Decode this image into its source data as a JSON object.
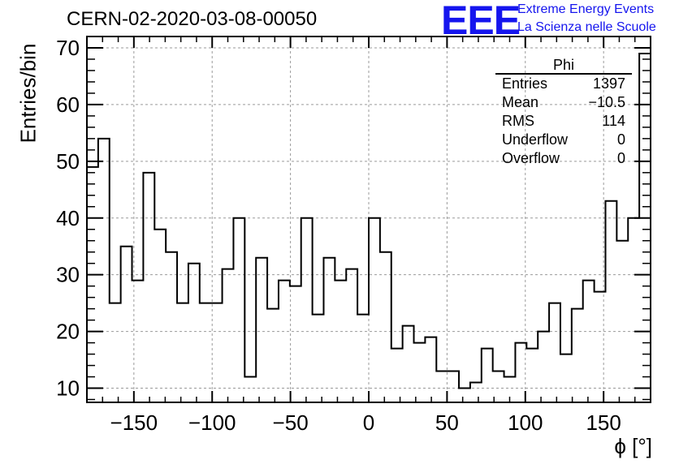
{
  "title": "CERN-02-2020-03-08-00050",
  "logo": {
    "mark": "EEE",
    "line1": "Extreme Energy Events",
    "line2": "La Scienza nelle Scuole"
  },
  "stats": {
    "name": "Phi",
    "rows": [
      {
        "label": "Entries",
        "value": "1397"
      },
      {
        "label": "Mean",
        "value": "−10.5"
      },
      {
        "label": "RMS",
        "value": "114"
      },
      {
        "label": "Underflow",
        "value": "0"
      },
      {
        "label": "Overflow",
        "value": "0"
      }
    ]
  },
  "chart_data": {
    "type": "histogram",
    "title": "CERN-02-2020-03-08-00050",
    "xlabel": "ϕ [°]",
    "ylabel": "Entries/bin",
    "xlim": [
      -180,
      180
    ],
    "ylim": [
      7.5,
      72
    ],
    "bin_width": 7.2,
    "grid": true,
    "x_ticks": [
      -150,
      -100,
      -50,
      0,
      50,
      100,
      150
    ],
    "x_tick_labels": [
      "−150",
      "−100",
      "−50",
      "0",
      "50",
      "100",
      "150"
    ],
    "y_ticks": [
      10,
      20,
      30,
      40,
      50,
      60,
      70
    ],
    "y_tick_labels": [
      "10",
      "20",
      "30",
      "40",
      "50",
      "60",
      "70"
    ],
    "bin_edges_start": -180,
    "values": [
      49,
      54,
      25,
      35,
      29,
      48,
      38,
      34,
      25,
      32,
      25,
      25,
      31,
      40,
      12,
      33,
      24,
      29,
      28,
      40,
      23,
      33,
      29,
      31,
      23,
      40,
      34,
      17,
      21,
      18,
      19,
      13,
      13,
      10,
      11,
      17,
      13,
      12,
      18,
      17,
      20,
      25,
      16,
      24,
      29,
      27,
      43,
      36,
      40,
      69
    ],
    "line_color": "#000000",
    "grid_color": "#9a9a9a"
  }
}
